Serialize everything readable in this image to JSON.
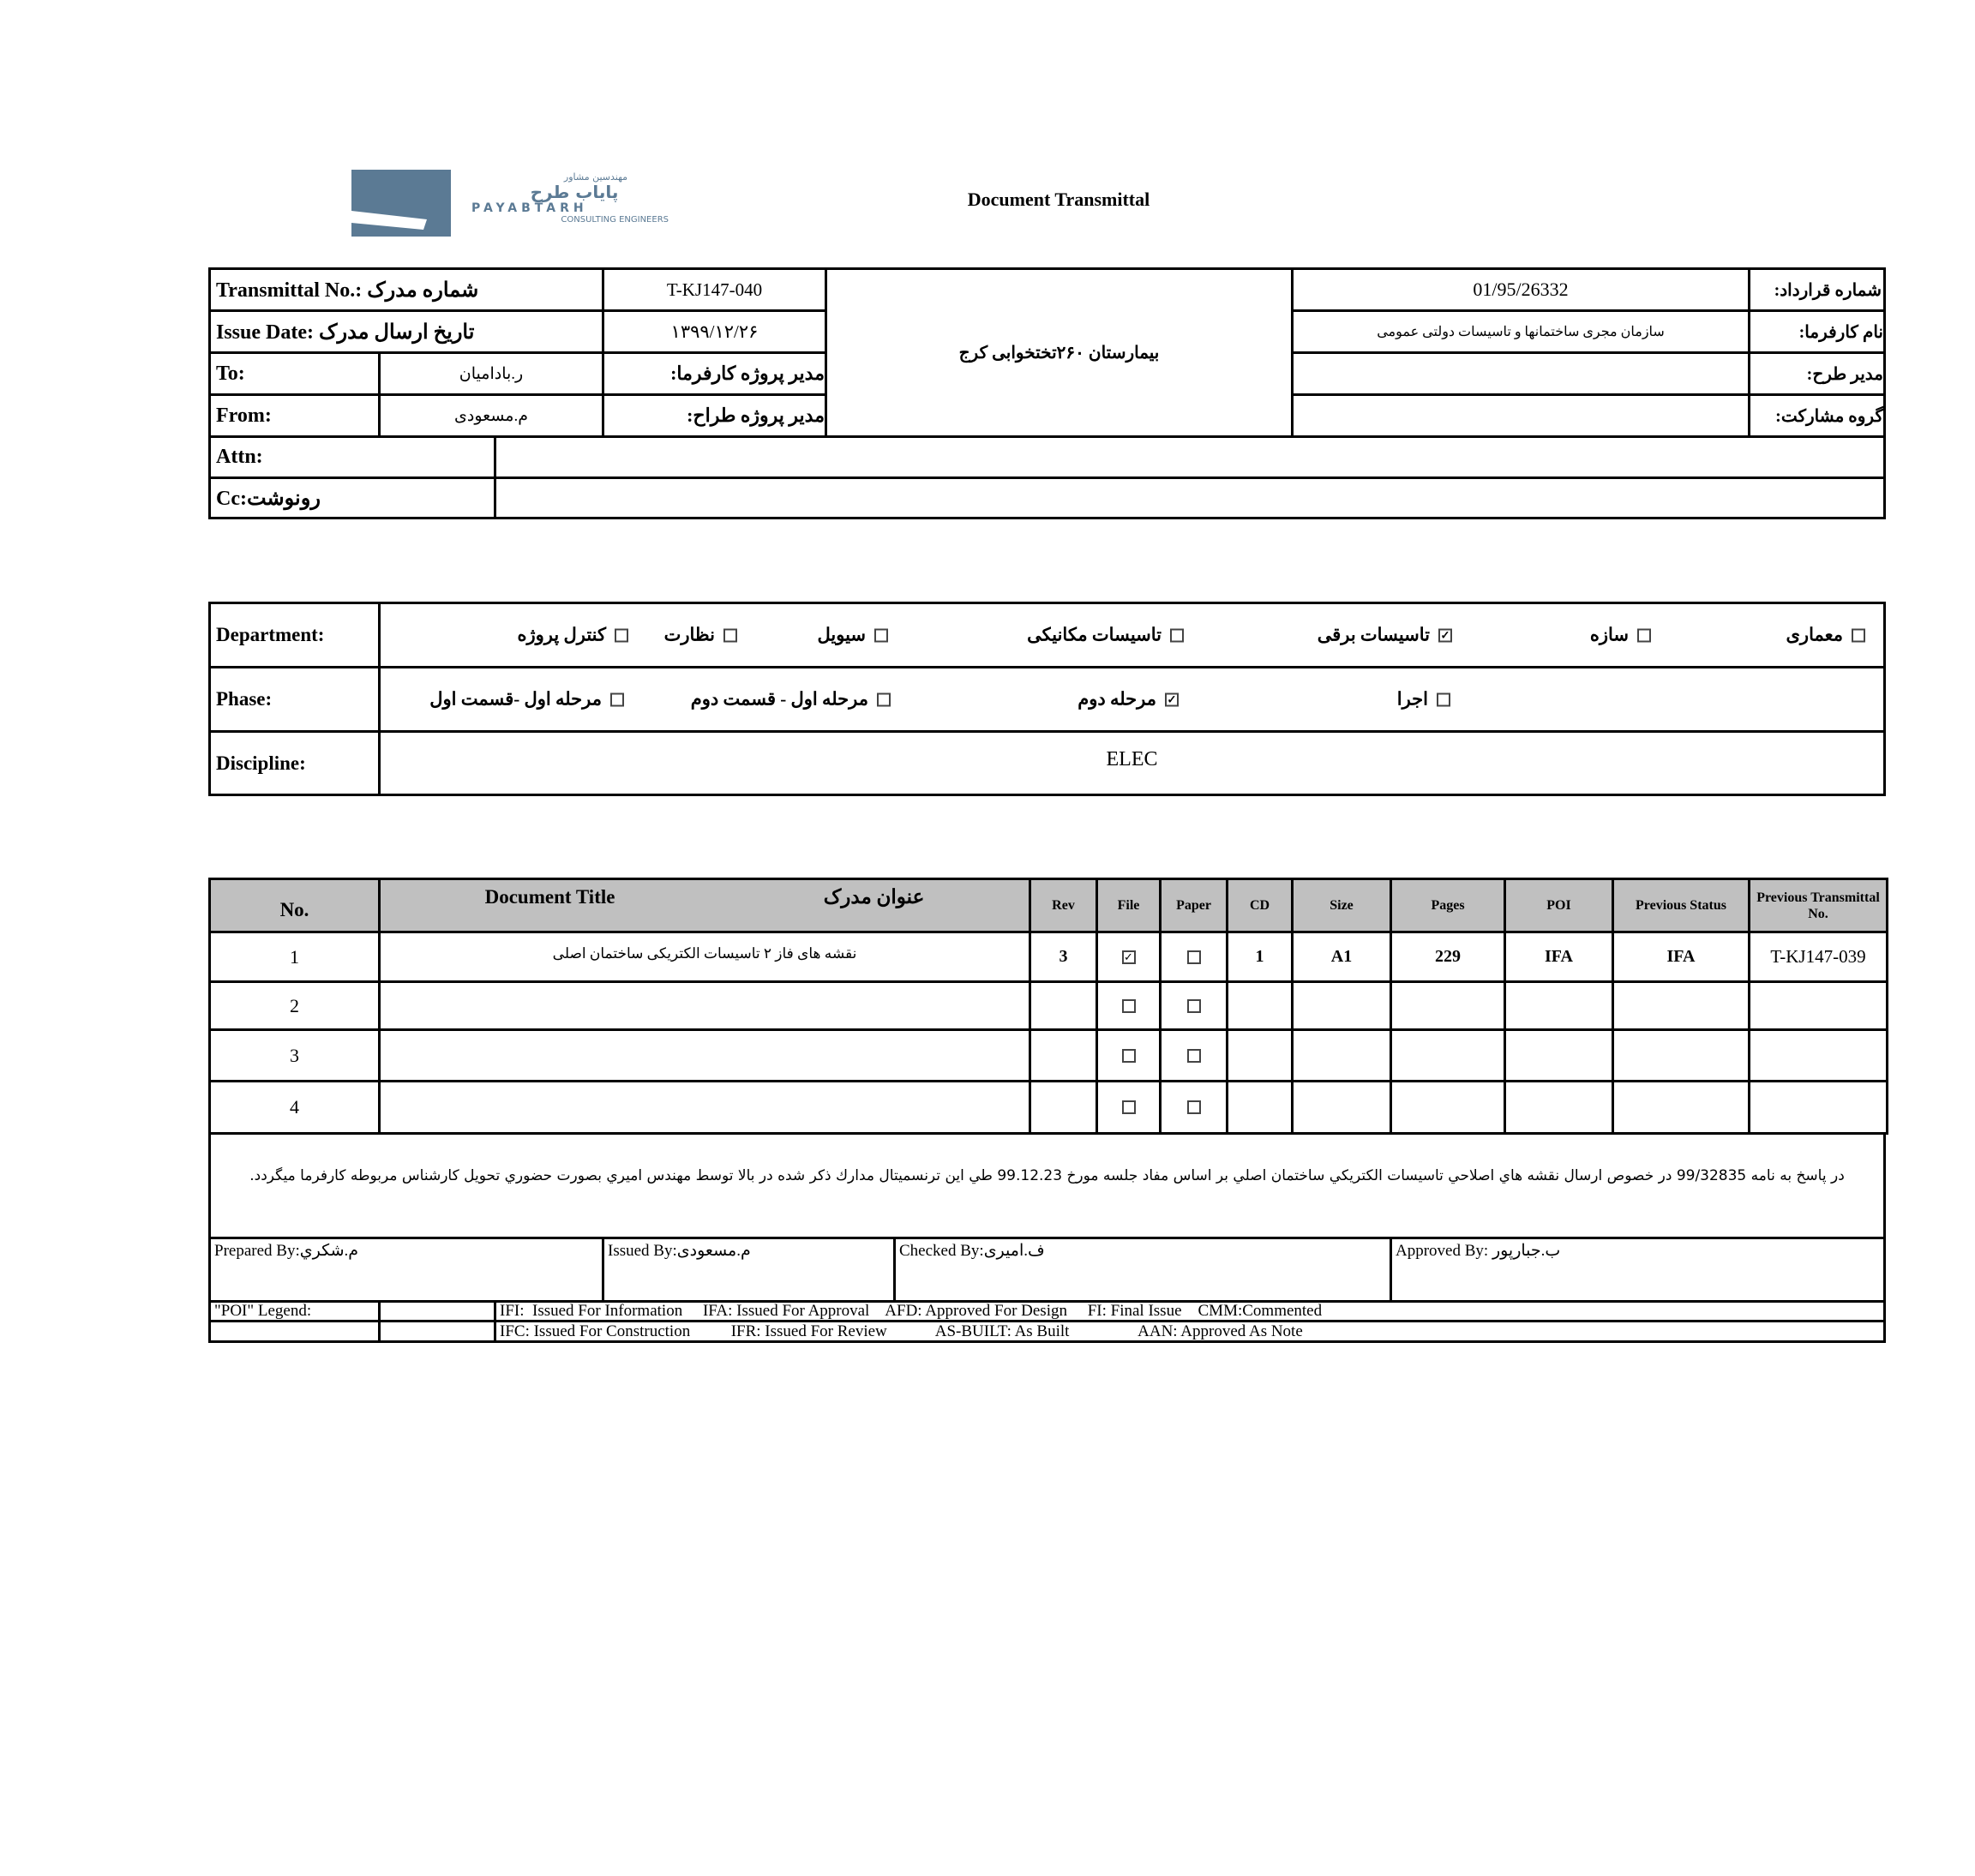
{
  "logo": {
    "fa_small": "مهندسین مشاور",
    "fa_name": "پایاب طرح",
    "en_name": "PAYABTARH",
    "en_sub": "CONSULTING ENGINEERS",
    "color": "#5b7a94"
  },
  "title": "Document Transmittal",
  "header": {
    "transmittal_label": "Transmittal No.: شماره مدرک",
    "transmittal_value": "T-KJ147-040",
    "issue_label": "Issue Date: تاریخ ارسال مدرک",
    "issue_value": "۱۳۹۹/۱۲/۲۶",
    "to_label": "To:",
    "to_value": "ر.بادامیان",
    "client_pm_label": "مدیر پروژه کارفرما:",
    "from_label": "From:",
    "from_value": "م.مسعودی",
    "designer_pm_label": "مدیر پروژه طراح:",
    "project": "بیمارستان ۲۶۰تختخوابی کرج",
    "contract_label": "شماره قرارداد:",
    "contract_value": "01/95/26332",
    "client_label": "نام کارفرما:",
    "client_value": "سازمان مجری ساختمانها و تاسیسات دولتی عمومی",
    "plan_manager_label": "مدیر طرح:",
    "plan_manager_value": "",
    "partner_label": "گروه مشارکت:",
    "partner_value": "",
    "attn_label": "Attn:",
    "attn_value": "",
    "cc_label": "Cc:رونوشت",
    "cc_value": ""
  },
  "department": {
    "label": "Department:",
    "options": [
      {
        "label": "معماری",
        "checked": false
      },
      {
        "label": "سازه",
        "checked": false
      },
      {
        "label": "تاسیسات برقی",
        "checked": true
      },
      {
        "label": "تاسیسات مکانیکی",
        "checked": false
      },
      {
        "label": "سیویل",
        "checked": false
      },
      {
        "label": "نظارت",
        "checked": false
      },
      {
        "label": "کنترل پروژه",
        "checked": false
      }
    ]
  },
  "phase": {
    "label": "Phase:",
    "options": [
      {
        "label": "اجرا",
        "checked": false
      },
      {
        "label": "مرحله دوم",
        "checked": true
      },
      {
        "label": "مرحله اول - قسمت دوم",
        "checked": false
      },
      {
        "label": "مرحله اول -قسمت اول",
        "checked": false
      }
    ]
  },
  "discipline": {
    "label": "Discipline:",
    "value": "ELEC"
  },
  "table": {
    "headers": {
      "no": "No.",
      "title_en": "Document Title",
      "title_fa": "عنوان مدرک",
      "rev": "Rev",
      "file": "File",
      "paper": "Paper",
      "cd": "CD",
      "size": "Size",
      "pages": "Pages",
      "poi": "POI",
      "prev_status": "Previous Status",
      "prev_transmittal": "Previous Transmittal No."
    },
    "rows": [
      {
        "no": "1",
        "title": "نقشه های فاز ۲ تاسیسات الکتریکی ساختمان اصلی",
        "rev": "3",
        "file": true,
        "paper": false,
        "cd": "1",
        "size": "A1",
        "pages": "229",
        "poi": "IFA",
        "prev_status": "IFA",
        "prev_transmittal": "T-KJ147-039"
      },
      {
        "no": "2",
        "title": "",
        "rev": "",
        "file": false,
        "paper": false,
        "cd": "",
        "size": "",
        "pages": "",
        "poi": "",
        "prev_status": "",
        "prev_transmittal": ""
      },
      {
        "no": "3",
        "title": "",
        "rev": "",
        "file": false,
        "paper": false,
        "cd": "",
        "size": "",
        "pages": "",
        "poi": "",
        "prev_status": "",
        "prev_transmittal": ""
      },
      {
        "no": "4",
        "title": "",
        "rev": "",
        "file": false,
        "paper": false,
        "cd": "",
        "size": "",
        "pages": "",
        "poi": "",
        "prev_status": "",
        "prev_transmittal": ""
      }
    ]
  },
  "notes": "در پاسخ به نامه 99/32835 در خصوص ارسال نقشه هاي اصلاحي تاسيسات الكتريكي ساختمان اصلي بر اساس مفاد جلسه مورخ 99.12.23 طي اين ترنسميتال مدارك ذكر شده  در بالا توسط مهندس اميري بصورت حضوري تحويل كارشناس مربوطه كارفرما ميگردد.",
  "signatures": {
    "prepared": "Prepared By:م.شكري",
    "issued": "Issued By:م.مسعودی",
    "checked": "Checked By:ف.امیری",
    "approved": "Approved By: ب.جبارپور"
  },
  "legend": {
    "label": "\"POI\" Legend:",
    "line1": "IFI:  Issued For Information     IFA: Issued For Approval    AFD: Approved For Design     FI: Final Issue    CMM:Commented",
    "line2": "IFC: Issued For Construction          IFR: Issued For Review            AS-BUILT: As Built                 AAN: Approved As Note"
  }
}
